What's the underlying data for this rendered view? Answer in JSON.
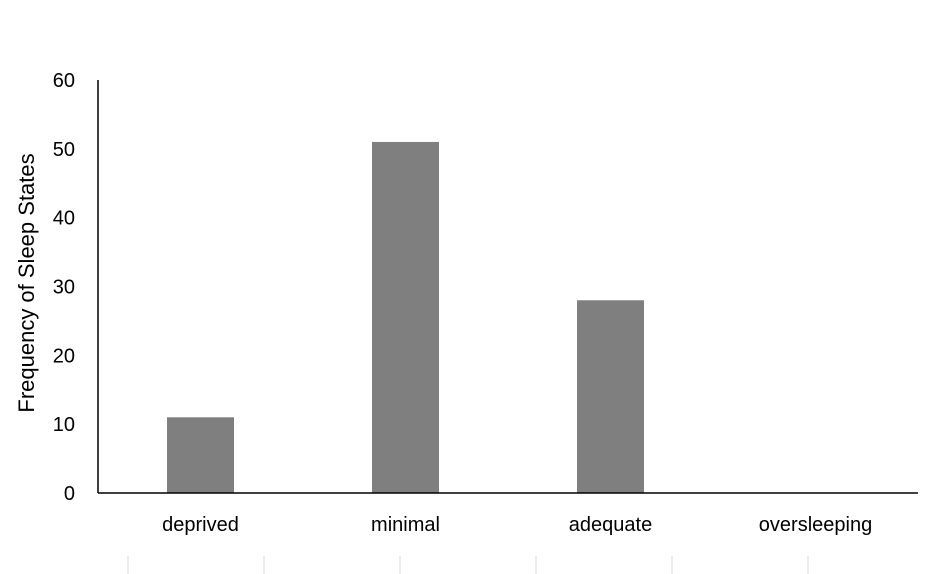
{
  "chart_data": {
    "type": "bar",
    "title": "",
    "xlabel": "",
    "ylabel": "Frequency of Sleep States",
    "categories": [
      "deprived",
      "minimal",
      "adequate",
      "oversleeping"
    ],
    "values": [
      11,
      51,
      28,
      0
    ],
    "ylim": [
      0,
      60
    ],
    "yticks": [
      0,
      10,
      20,
      30,
      40,
      50,
      60
    ],
    "grid": false,
    "legend": "none",
    "colors": {
      "bar": "#7f7f7f",
      "axis": "#000000",
      "minor_divider": "#d9d9d9"
    }
  }
}
